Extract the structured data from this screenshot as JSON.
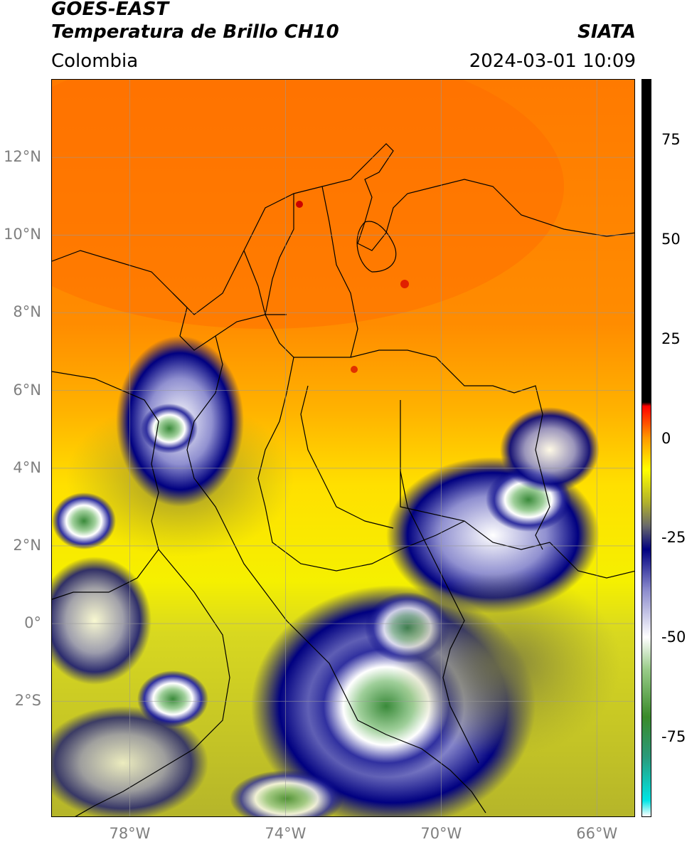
{
  "header": {
    "product": "GOES-EAST",
    "variable": "Temperatura de Brillo CH10",
    "region": "Colombia",
    "organization": "SIATA",
    "timestamp": "2024-03-01 10:09"
  },
  "map": {
    "lon_range": [
      -80,
      -65
    ],
    "lat_range": [
      -5,
      14
    ],
    "lat_ticks": [
      {
        "value": 12,
        "label": "12°N"
      },
      {
        "value": 10,
        "label": "10°N"
      },
      {
        "value": 8,
        "label": "8°N"
      },
      {
        "value": 6,
        "label": "6°N"
      },
      {
        "value": 4,
        "label": "4°N"
      },
      {
        "value": 2,
        "label": "2°N"
      },
      {
        "value": 0,
        "label": "0°"
      },
      {
        "value": -2,
        "label": "2°S"
      }
    ],
    "lon_ticks": [
      {
        "value": -78,
        "label": "78°W"
      },
      {
        "value": -74,
        "label": "74°W"
      },
      {
        "value": -70,
        "label": "70°W"
      },
      {
        "value": -66,
        "label": "66°W"
      }
    ],
    "grid": true
  },
  "colorbar": {
    "range": [
      -95,
      90
    ],
    "ticks": [
      {
        "value": 75,
        "label": "75"
      },
      {
        "value": 50,
        "label": "50"
      },
      {
        "value": 25,
        "label": "25"
      },
      {
        "value": 0,
        "label": "0"
      },
      {
        "value": -25,
        "label": "-25"
      },
      {
        "value": -50,
        "label": "-50"
      },
      {
        "value": -75,
        "label": "-75"
      }
    ],
    "stops": [
      {
        "value": -95,
        "color": "#ffffff"
      },
      {
        "value": -91,
        "color": "#00e5e5"
      },
      {
        "value": -80,
        "color": "#2a9a7a"
      },
      {
        "value": -70,
        "color": "#3a8a2a"
      },
      {
        "value": -58,
        "color": "#9acc8a"
      },
      {
        "value": -50,
        "color": "#ffffff"
      },
      {
        "value": -38,
        "color": "#8a8acc"
      },
      {
        "value": -28,
        "color": "#000080"
      },
      {
        "value": -22,
        "color": "#6a6a6a"
      },
      {
        "value": -16,
        "color": "#b3b32a"
      },
      {
        "value": -8,
        "color": "#ffff00"
      },
      {
        "value": 0,
        "color": "#ff9900"
      },
      {
        "value": 8,
        "color": "#ff0000"
      },
      {
        "value": 9,
        "color": "#000000"
      },
      {
        "value": 90,
        "color": "#000000"
      }
    ]
  }
}
